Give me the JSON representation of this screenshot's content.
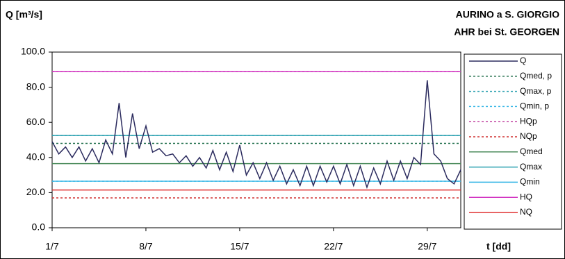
{
  "chart_data": {
    "type": "line",
    "title": "AURINO a S. GIORGIO",
    "subtitle": "AHR bei St. GEORGEN",
    "y_label": "Q [m³/s]",
    "x_label": "t [dd]",
    "xlim": [
      1,
      31.5
    ],
    "ylim": [
      0,
      100
    ],
    "xticks": [
      {
        "value": 1,
        "label": "1/7"
      },
      {
        "value": 8,
        "label": "8/7"
      },
      {
        "value": 15,
        "label": "15/7"
      },
      {
        "value": 22,
        "label": "22/7"
      },
      {
        "value": 29,
        "label": "29/7"
      }
    ],
    "yticks": [
      {
        "value": 0,
        "label": "0.0"
      },
      {
        "value": 20,
        "label": "20.0"
      },
      {
        "value": 40,
        "label": "40.0"
      },
      {
        "value": 60,
        "label": "60.0"
      },
      {
        "value": 80,
        "label": "80.0"
      },
      {
        "value": 100,
        "label": "100.0"
      }
    ],
    "series": [
      {
        "name": "Q",
        "color": "#2b2b5e",
        "x": [
          1,
          1.5,
          2,
          2.5,
          3,
          3.5,
          4,
          4.5,
          5,
          5.5,
          6,
          6.5,
          7,
          7.5,
          8,
          8.5,
          9,
          9.5,
          10,
          10.5,
          11,
          11.5,
          12,
          12.5,
          13,
          13.5,
          14,
          14.5,
          15,
          15.5,
          16,
          16.5,
          17,
          17.5,
          18,
          18.5,
          19,
          19.5,
          20,
          20.5,
          21,
          21.5,
          22,
          22.5,
          23,
          23.5,
          24,
          24.5,
          25,
          25.5,
          26,
          26.5,
          27,
          27.5,
          28,
          28.5,
          29,
          29.5,
          30,
          30.5,
          31,
          31.5
        ],
        "values": [
          49,
          42,
          46,
          40,
          46,
          38,
          45,
          37,
          50,
          42,
          71,
          40,
          65,
          45,
          58,
          43,
          45,
          41,
          42,
          37,
          41,
          35,
          40,
          34,
          44,
          33,
          43,
          32,
          47,
          30,
          37,
          28,
          37,
          27,
          35,
          25,
          33,
          24,
          35,
          24,
          35,
          26,
          35,
          25,
          36,
          24,
          35,
          23,
          34,
          25,
          38,
          27,
          38,
          28,
          40,
          36,
          84,
          42,
          38,
          28,
          25,
          33
        ]
      }
    ],
    "hlines": [
      {
        "name": "Qmed, p",
        "color": "#1f6e4a",
        "value": 48,
        "dash": "3,3"
      },
      {
        "name": "Qmax, p",
        "color": "#2aa0b0",
        "value": 52.5,
        "dash": "3,3"
      },
      {
        "name": "Qmin, p",
        "color": "#33b5e5",
        "value": 26.5,
        "dash": "3,3"
      },
      {
        "name": "HQp",
        "color": "#c040a0",
        "value": 89,
        "dash": "3,3"
      },
      {
        "name": "NQp",
        "color": "#d03030",
        "value": 17,
        "dash": "3,3"
      },
      {
        "name": "Qmed",
        "color": "#4a8a5a",
        "value": 36.5,
        "dash": null
      },
      {
        "name": "Qmax",
        "color": "#2aa0b0",
        "value": 52.5,
        "dash": null
      },
      {
        "name": "Qmin",
        "color": "#33b5e5",
        "value": 26.5,
        "dash": null
      },
      {
        "name": "HQ",
        "color": "#d030c0",
        "value": 89,
        "dash": null
      },
      {
        "name": "NQ",
        "color": "#e03030",
        "value": 21.5,
        "dash": null
      }
    ]
  }
}
